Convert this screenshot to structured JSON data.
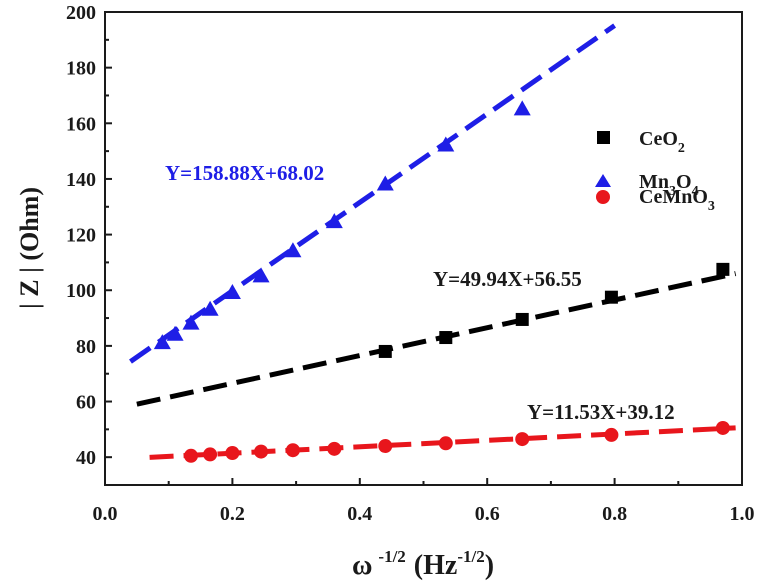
{
  "chart_data": {
    "type": "scatter",
    "title": "",
    "xlabel": {
      "symbol": "ω",
      "exp": "-1/2",
      "unit_open": "(Hz",
      "unit_exp": "-1/2",
      "unit_close": ")"
    },
    "ylabel": "| Z |  (Ohm)",
    "xlim": [
      0.0,
      1.0
    ],
    "ylim": [
      30,
      200
    ],
    "xticks": [
      "0.0",
      "0.2",
      "0.4",
      "0.6",
      "0.8",
      "1.0"
    ],
    "yticks": [
      "40",
      "60",
      "80",
      "100",
      "120",
      "140",
      "160",
      "180",
      "200"
    ],
    "xtick_values": [
      0.0,
      0.2,
      0.4,
      0.6,
      0.8,
      1.0
    ],
    "ytick_values": [
      40,
      60,
      80,
      100,
      120,
      140,
      160,
      180,
      200
    ],
    "grid": false,
    "legend_position": "right",
    "series": [
      {
        "name_base": "CeO",
        "name_sub": "2",
        "name_tail": "",
        "marker": "square",
        "color": "#000000",
        "x": [
          0.44,
          0.535,
          0.655,
          0.795,
          0.97
        ],
        "y": [
          78,
          83,
          89.5,
          97.5,
          107.5
        ],
        "fit": {
          "label": "Y=49.94X+56.55",
          "slope": 49.94,
          "intercept": 56.55,
          "x_range": [
            0.05,
            0.99
          ]
        }
      },
      {
        "name_base": "Mn",
        "name_sub": "3",
        "name_tail": "O",
        "name_sub2": "4",
        "marker": "triangle",
        "color": "#1e1ee6",
        "x": [
          0.09,
          0.11,
          0.135,
          0.165,
          0.2,
          0.245,
          0.295,
          0.36,
          0.44,
          0.535,
          0.655
        ],
        "y": [
          81,
          84,
          88,
          93,
          99,
          105,
          114,
          124.5,
          138,
          152,
          165
        ],
        "fit": {
          "label": "Y=158.88X+68.02",
          "slope": 158.88,
          "intercept": 68.02,
          "x_range": [
            0.04,
            0.8
          ]
        }
      },
      {
        "name_base": "CeMnO",
        "name_sub": "3",
        "name_tail": "",
        "marker": "circle",
        "color": "#e8161c",
        "x": [
          0.135,
          0.165,
          0.2,
          0.245,
          0.295,
          0.36,
          0.44,
          0.535,
          0.655,
          0.795,
          0.97
        ],
        "y": [
          40.5,
          41,
          41.5,
          42,
          42.5,
          43,
          44,
          45,
          46.5,
          48,
          50.5
        ],
        "fit": {
          "label": "Y=11.53X+39.12",
          "slope": 11.53,
          "intercept": 39.12,
          "x_range": [
            0.07,
            0.99
          ]
        }
      }
    ]
  }
}
